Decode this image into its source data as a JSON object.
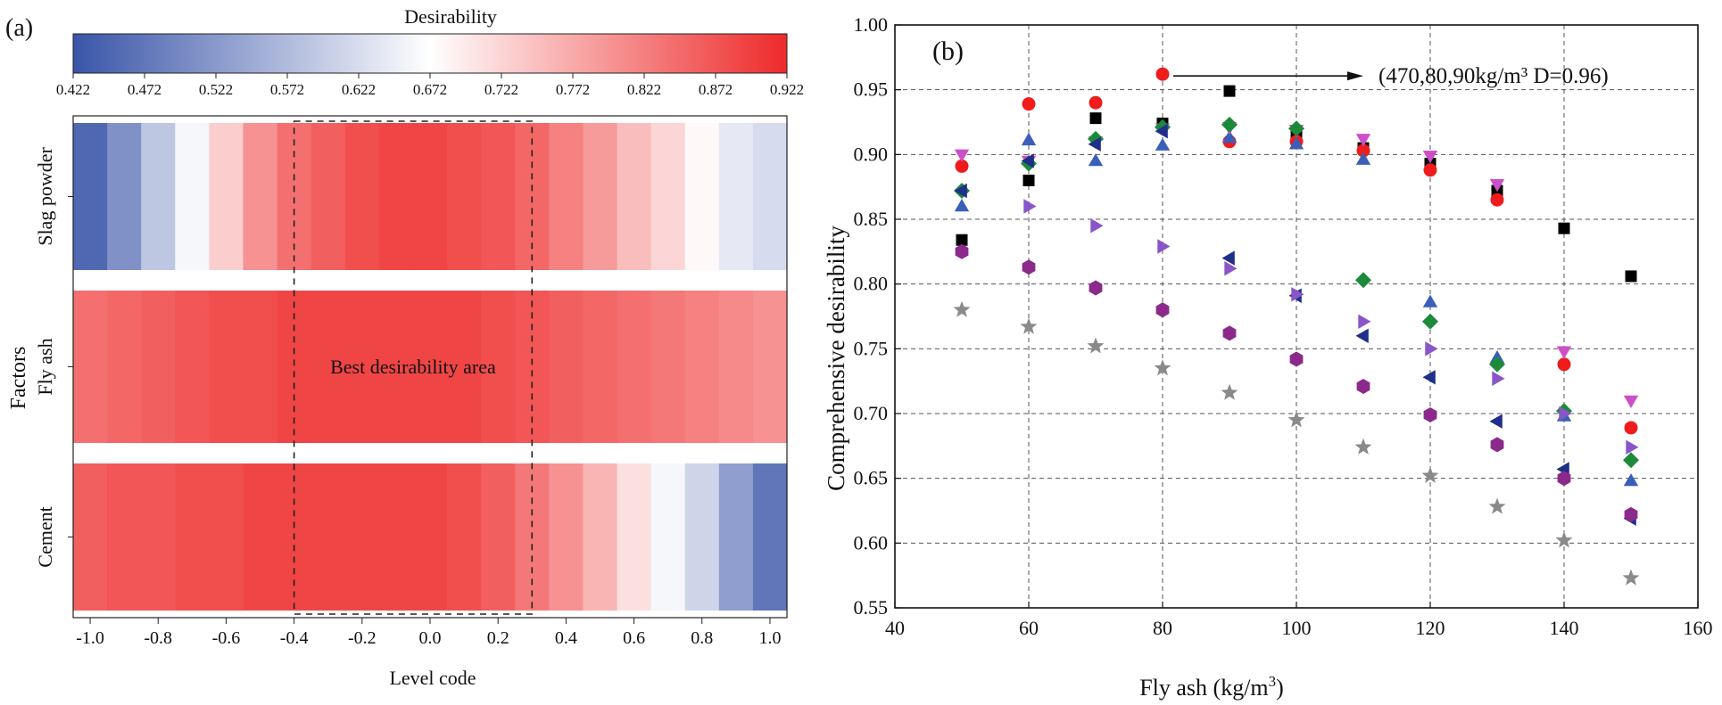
{
  "panel_a": {
    "label": "(a)",
    "chart_data": {
      "type": "heatmap",
      "colorbar_title": "Desirability",
      "colorbar_ticks": [
        "0.422",
        "0.472",
        "0.522",
        "0.572",
        "0.622",
        "0.672",
        "0.722",
        "0.772",
        "0.822",
        "0.872",
        "0.922"
      ],
      "colorbar_range": [
        0.422,
        0.922
      ],
      "colors": {
        "low": "#3a55a8",
        "mid": "#ffffff",
        "high": "#ee2a2a"
      },
      "ylabel": "Factors",
      "xlabel": "Level code",
      "x_ticks": [
        "-1.0",
        "-0.8",
        "-0.6",
        "-0.4",
        "-0.2",
        "0.0",
        "0.2",
        "0.4",
        "0.6",
        "0.8",
        "1.0"
      ],
      "x_range": [
        -1.05,
        1.05
      ],
      "level_codes": [
        -1.0,
        -0.9,
        -0.8,
        -0.7,
        -0.6,
        -0.5,
        -0.4,
        -0.3,
        -0.2,
        -0.1,
        0.0,
        0.1,
        0.2,
        0.3,
        0.4,
        0.5,
        0.6,
        0.7,
        0.8,
        0.9,
        1.0
      ],
      "rows": [
        {
          "name": "Slag powder",
          "values": [
            0.45,
            0.51,
            0.59,
            0.66,
            0.73,
            0.8,
            0.84,
            0.86,
            0.88,
            0.89,
            0.89,
            0.88,
            0.87,
            0.85,
            0.82,
            0.79,
            0.75,
            0.72,
            0.68,
            0.64,
            0.62
          ]
        },
        {
          "name": "Fly ash",
          "values": [
            0.84,
            0.85,
            0.86,
            0.87,
            0.88,
            0.88,
            0.89,
            0.89,
            0.89,
            0.89,
            0.89,
            0.89,
            0.88,
            0.87,
            0.86,
            0.85,
            0.84,
            0.83,
            0.82,
            0.81,
            0.8
          ]
        },
        {
          "name": "Cement",
          "values": [
            0.86,
            0.87,
            0.87,
            0.88,
            0.88,
            0.89,
            0.89,
            0.89,
            0.89,
            0.89,
            0.89,
            0.88,
            0.86,
            0.83,
            0.8,
            0.76,
            0.71,
            0.66,
            0.61,
            0.53,
            0.47
          ]
        }
      ],
      "best_area": {
        "label": "Best desirability area",
        "x_range": [
          -0.4,
          0.3
        ]
      }
    }
  },
  "panel_b": {
    "label": "(b)",
    "chart_data": {
      "type": "scatter",
      "xlabel": "Fly ash (kg/m3)",
      "ylabel": "Comprehensive desirability",
      "xlim": [
        40,
        160
      ],
      "ylim": [
        0.55,
        1.0
      ],
      "x_ticks": [
        "40",
        "60",
        "80",
        "100",
        "120",
        "140",
        "160"
      ],
      "y_ticks": [
        "0.55",
        "0.60",
        "0.65",
        "0.70",
        "0.75",
        "0.80",
        "0.85",
        "0.90",
        "0.95",
        "1.00"
      ],
      "grid": true,
      "annotation": {
        "text": "(470,80,90kg/m³ D=0.96)",
        "x": 80,
        "y": 0.962
      },
      "series": [
        {
          "marker": "square",
          "color": "#000000",
          "x": [
            50,
            60,
            70,
            80,
            90,
            100,
            110,
            120,
            130,
            140,
            150
          ],
          "y": [
            0.834,
            0.88,
            0.928,
            0.924,
            0.949,
            0.915,
            0.905,
            0.893,
            0.872,
            0.843,
            0.806
          ]
        },
        {
          "marker": "circle",
          "color": "#ee1c1c",
          "x": [
            50,
            60,
            70,
            80,
            90,
            100,
            110,
            120,
            130,
            140,
            150
          ],
          "y": [
            0.891,
            0.939,
            0.94,
            0.962,
            0.91,
            0.91,
            0.903,
            0.888,
            0.865,
            0.738,
            0.689
          ]
        },
        {
          "marker": "triangle-up",
          "color": "#3a5fb8",
          "x": [
            50,
            60,
            70,
            80,
            90,
            100,
            110,
            120,
            130,
            140,
            150
          ],
          "y": [
            0.86,
            0.911,
            0.895,
            0.907,
            0.913,
            0.908,
            0.896,
            0.786,
            0.743,
            0.698,
            0.648
          ]
        },
        {
          "marker": "triangle-down",
          "color": "#cc4fc8",
          "x": [
            50,
            60,
            70,
            80,
            90,
            100,
            110,
            120,
            130,
            140,
            150
          ],
          "y": [
            0.9,
            0.895,
            0.91,
            0.92,
            0.921,
            0.919,
            0.912,
            0.899,
            0.877,
            0.748,
            0.71
          ]
        },
        {
          "marker": "diamond",
          "color": "#1d8a3a",
          "x": [
            50,
            60,
            70,
            80,
            90,
            100,
            110,
            120,
            130,
            140,
            150
          ],
          "y": [
            0.872,
            0.893,
            0.912,
            0.921,
            0.923,
            0.92,
            0.803,
            0.771,
            0.738,
            0.702,
            0.664
          ]
        },
        {
          "marker": "triangle-left",
          "color": "#1f2f8a",
          "x": [
            50,
            60,
            70,
            80,
            90,
            100,
            110,
            120,
            130,
            140,
            150
          ],
          "y": [
            0.872,
            0.895,
            0.908,
            0.918,
            0.82,
            0.791,
            0.76,
            0.728,
            0.694,
            0.657,
            0.619
          ]
        },
        {
          "marker": "triangle-right",
          "color": "#8a55c8",
          "x": [
            60,
            70,
            80,
            90,
            100,
            110,
            120,
            130,
            140,
            150
          ],
          "y": [
            0.86,
            0.845,
            0.829,
            0.812,
            0.792,
            0.771,
            0.75,
            0.727,
            0.7,
            0.674
          ]
        },
        {
          "marker": "hexagon",
          "color": "#8b2a8b",
          "x": [
            50,
            60,
            70,
            80,
            90,
            100,
            110,
            120,
            130,
            140,
            150
          ],
          "y": [
            0.825,
            0.813,
            0.797,
            0.78,
            0.762,
            0.742,
            0.721,
            0.699,
            0.676,
            0.65,
            0.622
          ]
        },
        {
          "marker": "star",
          "color": "#8a8a8a",
          "x": [
            50,
            60,
            70,
            80,
            90,
            100,
            110,
            120,
            130,
            140,
            150
          ],
          "y": [
            0.78,
            0.767,
            0.752,
            0.735,
            0.716,
            0.695,
            0.674,
            0.652,
            0.628,
            0.602,
            0.573
          ]
        }
      ]
    }
  }
}
